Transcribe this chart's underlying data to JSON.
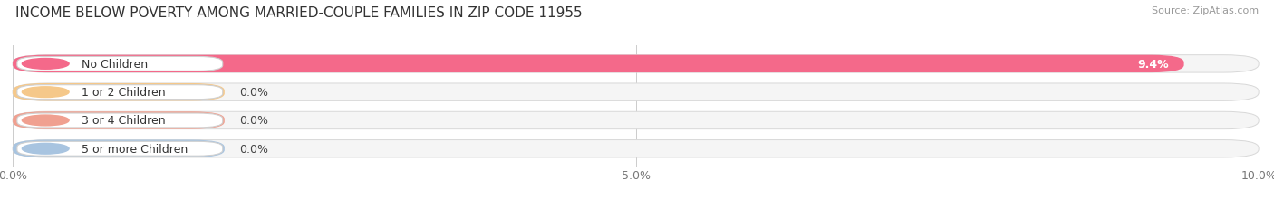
{
  "title": "INCOME BELOW POVERTY AMONG MARRIED-COUPLE FAMILIES IN ZIP CODE 11955",
  "source": "Source: ZipAtlas.com",
  "categories": [
    "No Children",
    "1 or 2 Children",
    "3 or 4 Children",
    "5 or more Children"
  ],
  "values": [
    9.4,
    0.0,
    0.0,
    0.0
  ],
  "bar_colors": [
    "#f4698a",
    "#f5c88a",
    "#f0a090",
    "#a8c4e0"
  ],
  "xlim": [
    0,
    10.0
  ],
  "xticks": [
    0.0,
    5.0,
    10.0
  ],
  "xticklabels": [
    "0.0%",
    "5.0%",
    "10.0%"
  ],
  "bar_height": 0.62,
  "title_fontsize": 11,
  "tick_fontsize": 9,
  "label_fontsize": 9,
  "value_fontsize": 9,
  "figure_bg": "#ffffff",
  "zero_bar_extent": 1.7
}
